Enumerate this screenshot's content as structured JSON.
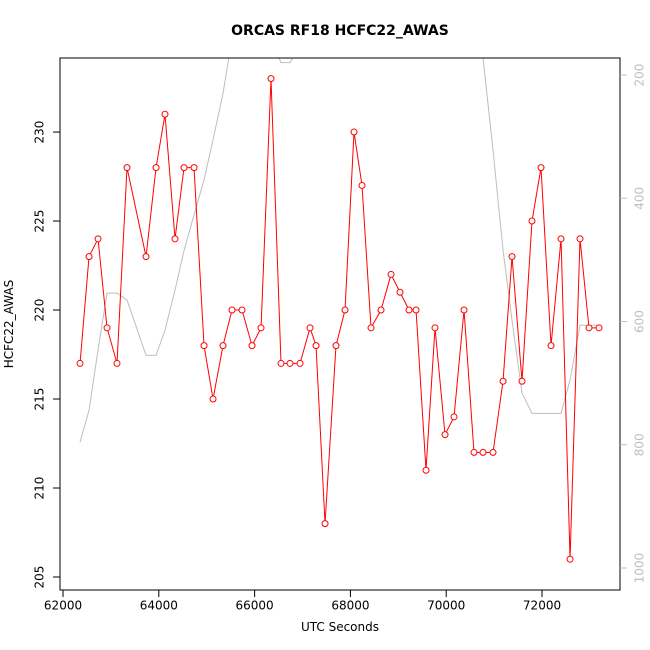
{
  "chart_data": {
    "type": "line",
    "title": "ORCAS RF18 HCFC22_AWAS",
    "xlabel": "UTC Seconds",
    "ylabel": "HCFC22_AWAS",
    "x": [
      62355,
      62543,
      62731,
      62919,
      63127,
      63336,
      63733,
      63942,
      64129,
      64338,
      64526,
      64735,
      64944,
      65132,
      65340,
      65528,
      65737,
      65946,
      66134,
      66342,
      66551,
      66739,
      66948,
      67157,
      67282,
      67470,
      67699,
      67887,
      68075,
      68242,
      68430,
      68639,
      68848,
      69035,
      69223,
      69370,
      69578,
      69766,
      69975,
      70163,
      70372,
      70580,
      70768,
      70977,
      71186,
      71374,
      71582,
      71791,
      71979,
      72188,
      72397,
      72585,
      72793,
      72981,
      73190
    ],
    "series": [
      {
        "color": "#ff0000",
        "marker": "circle",
        "values": [
          217,
          223,
          224,
          219,
          217,
          228,
          223,
          228,
          231,
          224,
          228,
          228,
          218,
          215,
          218,
          220,
          220,
          218,
          219,
          233,
          217,
          217,
          217,
          219,
          218,
          208,
          218,
          220,
          230,
          227,
          219,
          220,
          222,
          221,
          220,
          220,
          211,
          219,
          213,
          214,
          220,
          212,
          212,
          212,
          216,
          223,
          216,
          225,
          228,
          218,
          224,
          206,
          224,
          219,
          219
        ]
      },
      {
        "color": "#bebebe",
        "axis": "y2",
        "values": [
          796,
          744,
          646,
          554,
          554,
          565,
          655,
          655,
          614,
          549,
          485,
          427,
          370,
          305,
          230,
          140,
          140,
          140,
          140,
          140,
          180,
          180,
          150,
          150,
          150,
          150,
          150,
          150,
          150,
          150,
          150,
          150,
          150,
          150,
          150,
          150,
          150,
          150,
          150,
          150,
          150,
          150,
          172,
          322,
          484,
          598,
          716,
          749,
          749,
          749,
          749,
          695,
          606,
          606,
          606
        ]
      }
    ],
    "xlim": [
      61937,
      73628
    ],
    "xticks": [
      62000,
      64000,
      66000,
      68000,
      70000,
      72000
    ],
    "ylim": [
      204.27,
      234.16
    ],
    "yticks": [
      205,
      210,
      215,
      220,
      225,
      230
    ],
    "y2lim": [
      1035.7,
      172.4
    ],
    "y2ticks": [
      200,
      400,
      600,
      800,
      1000
    ]
  }
}
